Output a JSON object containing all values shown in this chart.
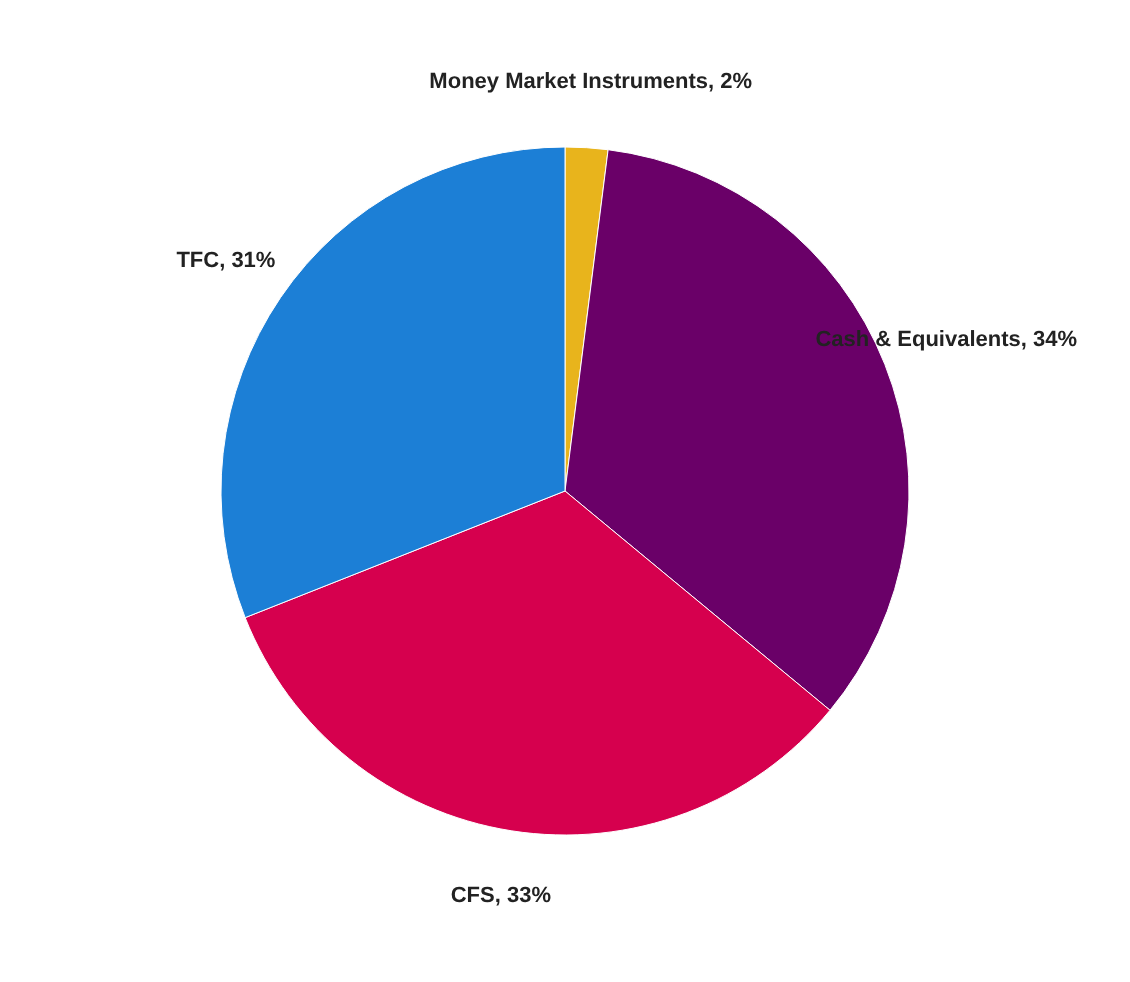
{
  "chart_data": {
    "type": "pie",
    "categories": [
      "Money Market Instruments",
      "Cash & Equivalents",
      "CFS",
      "TFC"
    ],
    "values": [
      2,
      34,
      33,
      31
    ],
    "value_labels": [
      "2%",
      "34%",
      "33%",
      "31%"
    ],
    "colors": [
      "#e8b41c",
      "#6a0068",
      "#d6004e",
      "#1c7fd6"
    ]
  }
}
